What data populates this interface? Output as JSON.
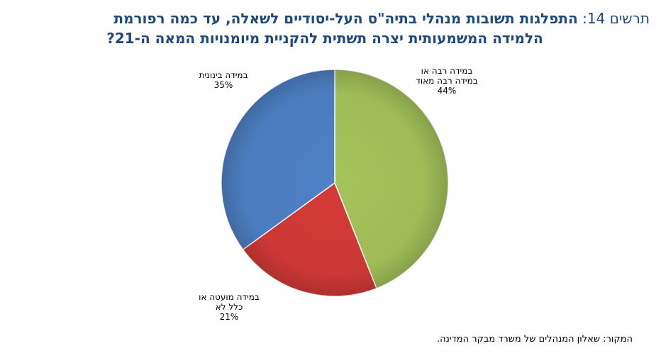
{
  "title": {
    "prefix": "תרשים 14:",
    "line1": "התפלגות תשובות מנהלי בתיה\"ס העל-יסודיים לשאלה, עד כמה רפורמת",
    "line2": "הלמידה המשמעותית יצרה תשתית להקניית מיומנויות המאה ה-21?"
  },
  "source": "המקור: שאלון המנהלים של משרד מבקר המדינה.",
  "colors": {
    "title": "#1f497d",
    "green": "#a5c35a",
    "red": "#d43a37",
    "blue": "#4f81c7",
    "edge": "#ffffff"
  },
  "chart_data": {
    "type": "pie",
    "title": "התפלגות תשובות מנהלי בתיה\"ס העל-יסודיים לשאלה, עד כמה רפורמת הלמידה המשמעותית יצרה תשתית להקניית מיומנויות המאה ה-21?",
    "slices": [
      {
        "label_lines": [
          "במידה רבה או",
          "במידה רבה מאוד"
        ],
        "percent_label": "44%",
        "value": 44,
        "color": "#a5c35a"
      },
      {
        "label_lines": [
          "במידה מועטה או",
          "כלל לא"
        ],
        "percent_label": "21%",
        "value": 21,
        "color": "#d43a37"
      },
      {
        "label_lines": [
          "במידה בינונית"
        ],
        "percent_label": "35%",
        "value": 35,
        "color": "#4f81c7"
      }
    ],
    "start": "12 o'clock",
    "direction": "clockwise",
    "legend": "none",
    "data_labels": "outside"
  }
}
